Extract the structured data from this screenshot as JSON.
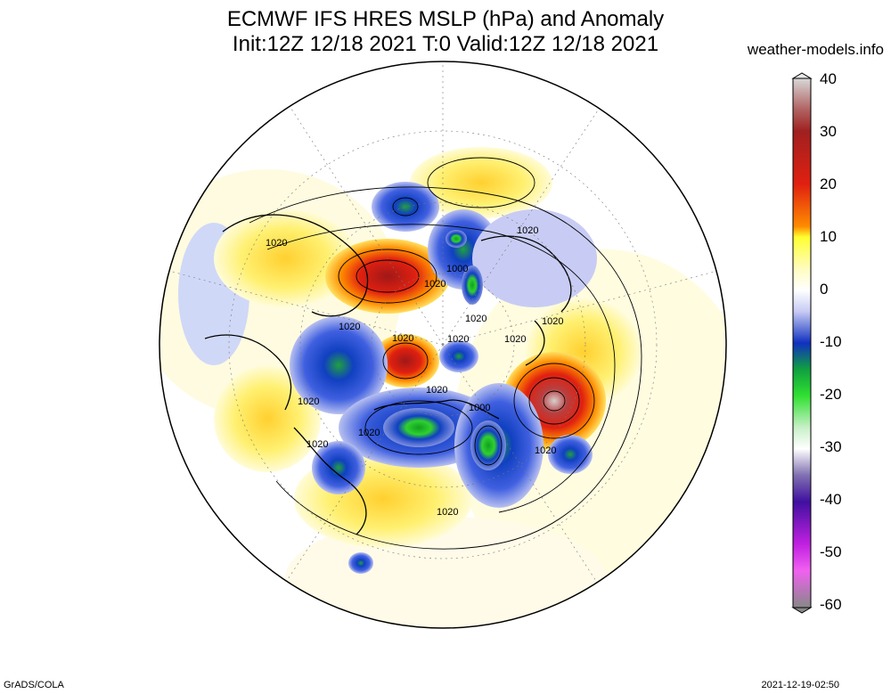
{
  "header": {
    "title_line1": "ECMWF IFS HRES MSLP (hPa) and Anomaly",
    "title_line2": "Init:12Z 12/18 2021 T:0 Valid:12Z 12/18 2021",
    "site": "weather-models.info"
  },
  "legend": {
    "ticks": [
      "40",
      "30",
      "20",
      "10",
      "0",
      "-10",
      "-20",
      "-30",
      "-40",
      "-50",
      "-60"
    ],
    "colors": [
      "#c8c8c8",
      "#a04040",
      "#e02010",
      "#ff8c00",
      "#ffff50",
      "#ffffff",
      "#6070e0",
      "#1030c0",
      "#30d030",
      "#ffffff",
      "#5020a0",
      "#d020e0",
      "#999999"
    ]
  },
  "map": {
    "contour_labels": [
      "1020",
      "1000",
      "1020",
      "1020",
      "1020",
      "1020",
      "1020",
      "1020",
      "1020",
      "1000",
      "1020",
      "1020",
      "1020",
      "1020",
      "1020",
      "1020",
      "1020"
    ]
  },
  "footer": {
    "left": "GrADS/COLA",
    "right": "2021-12-19-02:50"
  }
}
